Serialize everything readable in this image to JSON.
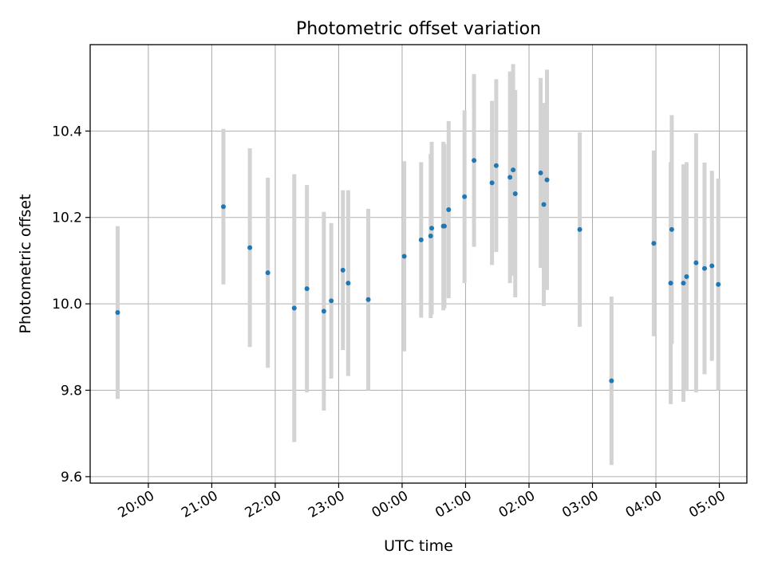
{
  "chart_data": {
    "type": "scatter",
    "title": "Photometric offset variation",
    "xlabel": "UTC time",
    "ylabel": "Photometric offset",
    "x_is_time": true,
    "x_tick_labels": [
      "20:00",
      "21:00",
      "22:00",
      "23:00",
      "00:00",
      "01:00",
      "02:00",
      "03:00",
      "04:00",
      "05:00"
    ],
    "x_ticks": [
      "2023-01-01T20:00",
      "2023-01-01T21:00",
      "2023-01-01T22:00",
      "2023-01-01T23:00",
      "2023-01-02T00:00",
      "2023-01-02T01:00",
      "2023-01-02T02:00",
      "2023-01-02T03:00",
      "2023-01-02T04:00",
      "2023-01-02T05:00"
    ],
    "xlim": [
      "2023-01-01T19:05",
      "2023-01-02T05:26"
    ],
    "ylim": [
      9.585,
      10.6
    ],
    "y_ticks": [
      9.6,
      9.8,
      10.0,
      10.2,
      10.4
    ],
    "y_tick_labels": [
      "9.6",
      "9.8",
      "10.0",
      "10.2",
      "10.4"
    ],
    "grid": true,
    "colors": {
      "marker": "#1f77b4",
      "errorbar": "#d3d3d3",
      "grid": "#b0b0b0"
    },
    "points": [
      {
        "x": "2023-01-01T19:31",
        "y": 9.98,
        "err": 0.2
      },
      {
        "x": "2023-01-01T21:11",
        "y": 10.225,
        "err": 0.18
      },
      {
        "x": "2023-01-01T21:36",
        "y": 10.13,
        "err": 0.23
      },
      {
        "x": "2023-01-01T21:53",
        "y": 10.072,
        "err": 0.22
      },
      {
        "x": "2023-01-01T22:18",
        "y": 9.99,
        "err": 0.31
      },
      {
        "x": "2023-01-01T22:30",
        "y": 10.035,
        "err": 0.24
      },
      {
        "x": "2023-01-01T22:46",
        "y": 9.983,
        "err": 0.23
      },
      {
        "x": "2023-01-01T22:53",
        "y": 10.007,
        "err": 0.18
      },
      {
        "x": "2023-01-01T23:04",
        "y": 10.078,
        "err": 0.185
      },
      {
        "x": "2023-01-01T23:09",
        "y": 10.048,
        "err": 0.215
      },
      {
        "x": "2023-01-01T23:28",
        "y": 10.01,
        "err": 0.21
      },
      {
        "x": "2023-01-02T00:02",
        "y": 10.11,
        "err": 0.22
      },
      {
        "x": "2023-01-02T00:18",
        "y": 10.148,
        "err": 0.18
      },
      {
        "x": "2023-01-02T00:27",
        "y": 10.157,
        "err": 0.19
      },
      {
        "x": "2023-01-02T00:28",
        "y": 10.175,
        "err": 0.2
      },
      {
        "x": "2023-01-02T00:39",
        "y": 10.18,
        "err": 0.195
      },
      {
        "x": "2023-01-02T00:40",
        "y": 10.18,
        "err": 0.19
      },
      {
        "x": "2023-01-02T00:44",
        "y": 10.218,
        "err": 0.205
      },
      {
        "x": "2023-01-02T00:59",
        "y": 10.248,
        "err": 0.2
      },
      {
        "x": "2023-01-02T01:08",
        "y": 10.332,
        "err": 0.2
      },
      {
        "x": "2023-01-02T01:25",
        "y": 10.28,
        "err": 0.19
      },
      {
        "x": "2023-01-02T01:29",
        "y": 10.32,
        "err": 0.2
      },
      {
        "x": "2023-01-02T01:42",
        "y": 10.293,
        "err": 0.245
      },
      {
        "x": "2023-01-02T01:45",
        "y": 10.31,
        "err": 0.245
      },
      {
        "x": "2023-01-02T01:47",
        "y": 10.255,
        "err": 0.24
      },
      {
        "x": "2023-01-02T02:11",
        "y": 10.303,
        "err": 0.22
      },
      {
        "x": "2023-01-02T02:14",
        "y": 10.23,
        "err": 0.235
      },
      {
        "x": "2023-01-02T02:17",
        "y": 10.287,
        "err": 0.255
      },
      {
        "x": "2023-01-02T02:48",
        "y": 10.172,
        "err": 0.225
      },
      {
        "x": "2023-01-02T03:18",
        "y": 9.822,
        "err": 0.195
      },
      {
        "x": "2023-01-02T03:58",
        "y": 10.14,
        "err": 0.215
      },
      {
        "x": "2023-01-02T04:14",
        "y": 10.048,
        "err": 0.28
      },
      {
        "x": "2023-01-02T04:15",
        "y": 10.172,
        "err": 0.265
      },
      {
        "x": "2023-01-02T04:26",
        "y": 10.048,
        "err": 0.275
      },
      {
        "x": "2023-01-02T04:29",
        "y": 10.063,
        "err": 0.265
      },
      {
        "x": "2023-01-02T04:38",
        "y": 10.095,
        "err": 0.3
      },
      {
        "x": "2023-01-02T04:46",
        "y": 10.082,
        "err": 0.245
      },
      {
        "x": "2023-01-02T04:53",
        "y": 10.088,
        "err": 0.22
      },
      {
        "x": "2023-01-02T04:59",
        "y": 10.045,
        "err": 0.245
      }
    ]
  }
}
